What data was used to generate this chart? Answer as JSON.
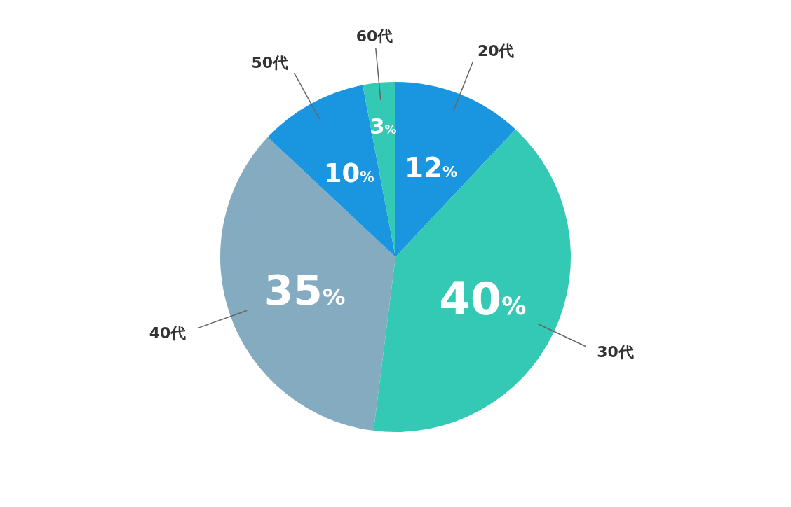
{
  "chart_data": {
    "type": "pie",
    "categories": [
      "20代",
      "30代",
      "40代",
      "50代",
      "60代"
    ],
    "values": [
      12,
      40,
      35,
      10,
      3
    ],
    "colors": [
      "#1a96e0",
      "#33c9b4",
      "#84abbf",
      "#1a96e0",
      "#33c9b4"
    ],
    "value_labels": [
      "12%",
      "40%",
      "35%",
      "10%",
      "3%"
    ]
  }
}
